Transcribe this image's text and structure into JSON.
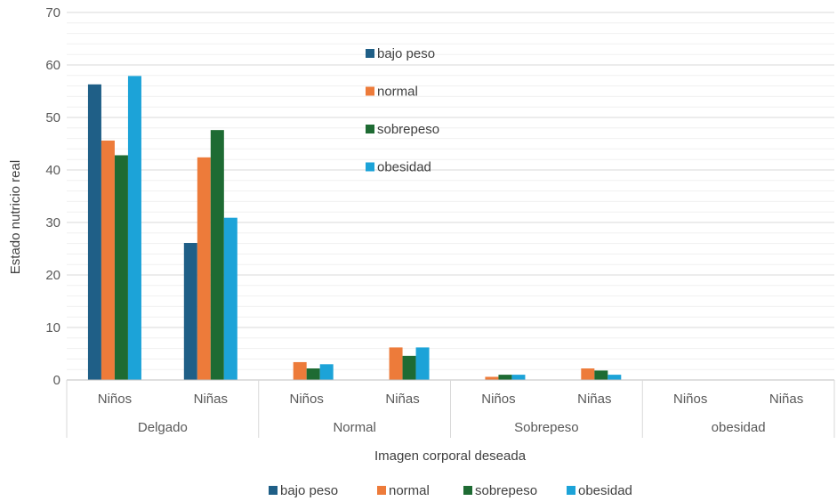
{
  "chart_data": {
    "type": "bar",
    "groups": [
      "Delgado",
      "Normal",
      "Sobrepeso",
      "obesidad"
    ],
    "subgroups": [
      "Niños",
      "Niñas"
    ],
    "categories": [
      "Delgado / Niños",
      "Delgado / Niñas",
      "Normal / Niños",
      "Normal / Niñas",
      "Sobrepeso / Niños",
      "Sobrepeso / Niñas",
      "obesidad / Niños",
      "obesidad / Niñas"
    ],
    "series": [
      {
        "name": "bajo peso",
        "color": "#1f5f87",
        "values": [
          56.3,
          26.1,
          0,
          0,
          0,
          0,
          0,
          0
        ]
      },
      {
        "name": "normal",
        "color": "#ed7b3a",
        "values": [
          45.6,
          42.4,
          3.4,
          6.2,
          0.6,
          2.2,
          0,
          0
        ]
      },
      {
        "name": "sobrepeso",
        "color": "#1e6b33",
        "values": [
          42.8,
          47.6,
          2.2,
          4.6,
          1.0,
          1.8,
          0,
          0
        ]
      },
      {
        "name": "obesidad",
        "color": "#1ca3d8",
        "values": [
          57.9,
          30.9,
          3.0,
          6.2,
          1.0,
          1.0,
          0,
          0
        ]
      }
    ],
    "xlabel": "Imagen corporal deseada",
    "ylabel": "Estado nutricio real",
    "ylim": [
      0,
      70
    ],
    "yticks": [
      0,
      10,
      20,
      30,
      40,
      50,
      60,
      70
    ],
    "grid": true,
    "legend_placement": [
      "top-center",
      "bottom"
    ]
  }
}
